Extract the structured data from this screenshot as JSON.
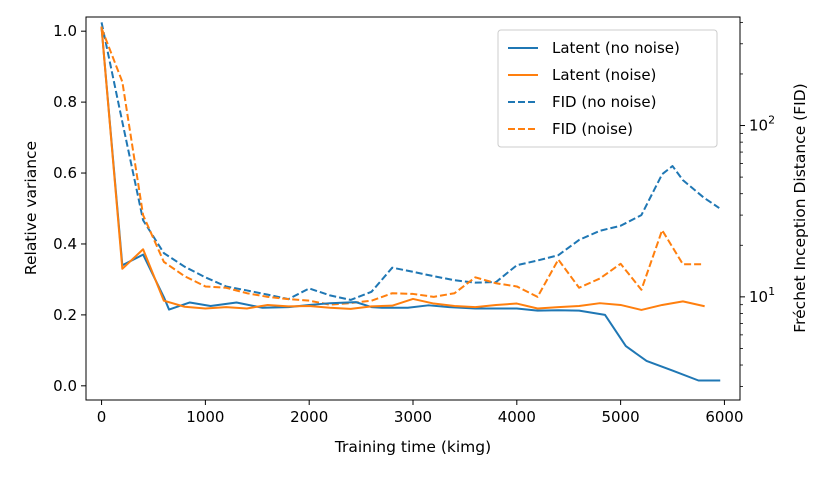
{
  "chart_data": {
    "type": "line",
    "xlabel": "Training time (kimg)",
    "ylabel_left": "Relative variance",
    "ylabel_right": "Fréchet Inception Distance (FID)",
    "xlim": [
      -150,
      6150
    ],
    "ylim_left": [
      -0.04,
      1.04
    ],
    "ylim_right_log": [
      2.5,
      430
    ],
    "x_ticks": [
      0,
      1000,
      2000,
      3000,
      4000,
      5000,
      6000
    ],
    "x_tick_labels": [
      "0",
      "1000",
      "2000",
      "3000",
      "4000",
      "5000",
      "6000"
    ],
    "y_ticks_left": [
      0.0,
      0.2,
      0.4,
      0.6,
      0.8,
      1.0
    ],
    "y_tick_labels_left": [
      "0.0",
      "0.2",
      "0.4",
      "0.6",
      "0.8",
      "1.0"
    ],
    "y_ticks_right": [
      10,
      100
    ],
    "y_tick_labels_right": [
      {
        "base": "10",
        "exp": "1"
      },
      {
        "base": "10",
        "exp": "2"
      }
    ],
    "legend_position": "top-right",
    "series": [
      {
        "name": "Latent (no noise)",
        "axis": "left",
        "color": "#1f77b4",
        "style": "solid",
        "x": [
          0,
          200,
          400,
          600,
          650,
          850,
          1050,
          1300,
          1550,
          1800,
          2000,
          2200,
          2450,
          2600,
          2700,
          2950,
          3150,
          3350,
          3600,
          3800,
          4000,
          4200,
          4400,
          4600,
          4850,
          5050,
          5250,
          5500,
          5750,
          5950
        ],
        "values": [
          1.01,
          0.34,
          0.37,
          0.25,
          0.215,
          0.235,
          0.225,
          0.235,
          0.22,
          0.222,
          0.228,
          0.233,
          0.236,
          0.222,
          0.22,
          0.22,
          0.227,
          0.222,
          0.218,
          0.218,
          0.218,
          0.212,
          0.213,
          0.212,
          0.2,
          0.112,
          0.07,
          0.043,
          0.015,
          0.015
        ]
      },
      {
        "name": "Latent (noise)",
        "axis": "left",
        "color": "#ff7f0e",
        "style": "solid",
        "x": [
          0,
          200,
          400,
          600,
          800,
          1000,
          1200,
          1400,
          1600,
          1800,
          2000,
          2200,
          2400,
          2600,
          2800,
          3000,
          3200,
          3400,
          3600,
          3800,
          4000,
          4200,
          4400,
          4600,
          4800,
          5000,
          5200,
          5400,
          5600,
          5800
        ],
        "values": [
          1.01,
          0.33,
          0.385,
          0.24,
          0.223,
          0.218,
          0.222,
          0.218,
          0.228,
          0.224,
          0.225,
          0.22,
          0.217,
          0.224,
          0.226,
          0.245,
          0.232,
          0.225,
          0.222,
          0.228,
          0.232,
          0.218,
          0.222,
          0.225,
          0.233,
          0.228,
          0.214,
          0.228,
          0.238,
          0.225
        ]
      },
      {
        "name": "FID (no noise)",
        "axis": "right",
        "color": "#1f77b4",
        "style": "dashed",
        "x": [
          0,
          200,
          400,
          600,
          800,
          1000,
          1200,
          1400,
          1600,
          1800,
          2000,
          2200,
          2400,
          2600,
          2800,
          3000,
          3200,
          3400,
          3600,
          3800,
          4000,
          4200,
          4400,
          4600,
          4800,
          5000,
          5200,
          5400,
          5500,
          5600,
          5800,
          5950
        ],
        "values": [
          400,
          105,
          28,
          18,
          15,
          13,
          11.5,
          10.9,
          10.3,
          9.7,
          11.2,
          10.2,
          9.6,
          10.7,
          14.8,
          14.0,
          13.2,
          12.5,
          12.1,
          12.2,
          15.3,
          16.3,
          17.5,
          21.5,
          24.3,
          26.0,
          30.0,
          52.0,
          58.0,
          48.0,
          38.0,
          33.0
        ]
      },
      {
        "name": "FID (noise)",
        "axis": "right",
        "color": "#ff7f0e",
        "style": "dashed",
        "x": [
          0,
          200,
          400,
          600,
          800,
          1000,
          1200,
          1400,
          1600,
          1800,
          2000,
          2200,
          2400,
          2600,
          2800,
          3000,
          3200,
          3400,
          3600,
          3800,
          4000,
          4200,
          4400,
          4600,
          4800,
          5000,
          5200,
          5400,
          5600,
          5800
        ],
        "values": [
          370,
          180,
          30,
          16,
          13.2,
          11.5,
          11.3,
          10.5,
          10.0,
          9.7,
          9.5,
          9.0,
          9.2,
          9.5,
          10.5,
          10.4,
          10.0,
          10.5,
          13.0,
          12.0,
          11.5,
          10.0,
          16.5,
          11.3,
          12.8,
          15.6,
          11.0,
          24.5,
          15.5,
          15.5
        ]
      }
    ]
  }
}
